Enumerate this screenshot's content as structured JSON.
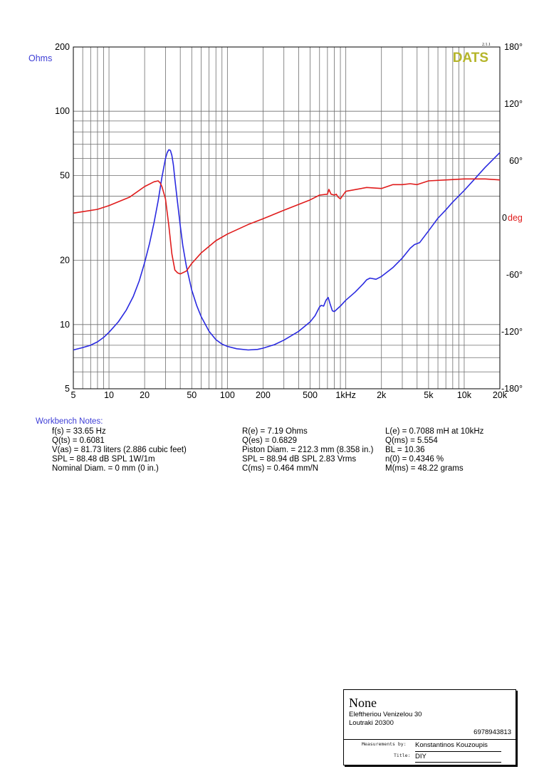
{
  "chart_data": {
    "type": "line",
    "x_axis": {
      "scale": "log",
      "range": [
        5,
        20000
      ],
      "tick_labels": [
        {
          "v": 5,
          "t": "5"
        },
        {
          "v": 10,
          "t": "10"
        },
        {
          "v": 20,
          "t": "20"
        },
        {
          "v": 50,
          "t": "50"
        },
        {
          "v": 100,
          "t": "100"
        },
        {
          "v": 200,
          "t": "200"
        },
        {
          "v": 500,
          "t": "500"
        },
        {
          "v": 1000,
          "t": "1kHz"
        },
        {
          "v": 2000,
          "t": "2k"
        },
        {
          "v": 5000,
          "t": "5k"
        },
        {
          "v": 10000,
          "t": "10k"
        },
        {
          "v": 20000,
          "t": "20k"
        }
      ]
    },
    "y_left": {
      "label": "Ohms",
      "scale": "log",
      "range": [
        5,
        200
      ],
      "tick_labels": [
        {
          "v": 5,
          "t": "5"
        },
        {
          "v": 10,
          "t": "10"
        },
        {
          "v": 20,
          "t": "20"
        },
        {
          "v": 50,
          "t": "50"
        },
        {
          "v": 100,
          "t": "100"
        },
        {
          "v": 200,
          "t": "200"
        }
      ]
    },
    "y_right": {
      "label": "deg",
      "range": [
        -180,
        180
      ],
      "tick_labels": [
        {
          "v": 180,
          "t": "180°"
        },
        {
          "v": 120,
          "t": "120°"
        },
        {
          "v": 60,
          "t": "60°"
        },
        {
          "v": 0,
          "t": "0"
        },
        {
          "v": -60,
          "t": "-60°"
        },
        {
          "v": -120,
          "t": "-120°"
        },
        {
          "v": -180,
          "t": "-180°"
        }
      ]
    },
    "grid": true,
    "series": [
      {
        "axis": "left",
        "color": "#2a2ae0",
        "points": [
          [
            5,
            7.6
          ],
          [
            6,
            7.8
          ],
          [
            7,
            8.0
          ],
          [
            8,
            8.3
          ],
          [
            9,
            8.7
          ],
          [
            10,
            9.2
          ],
          [
            12,
            10.3
          ],
          [
            14,
            11.7
          ],
          [
            16,
            13.5
          ],
          [
            18,
            16
          ],
          [
            20,
            19.5
          ],
          [
            22,
            24
          ],
          [
            24,
            30
          ],
          [
            26,
            38
          ],
          [
            28,
            49
          ],
          [
            30,
            60
          ],
          [
            31,
            64
          ],
          [
            32,
            66
          ],
          [
            33,
            65.5
          ],
          [
            34,
            62
          ],
          [
            35,
            56
          ],
          [
            36,
            48
          ],
          [
            38,
            37
          ],
          [
            40,
            29
          ],
          [
            42,
            23.5
          ],
          [
            45,
            18.8
          ],
          [
            50,
            14.5
          ],
          [
            55,
            12.3
          ],
          [
            60,
            10.9
          ],
          [
            70,
            9.3
          ],
          [
            80,
            8.5
          ],
          [
            90,
            8.1
          ],
          [
            100,
            7.9
          ],
          [
            120,
            7.7
          ],
          [
            150,
            7.6
          ],
          [
            180,
            7.65
          ],
          [
            200,
            7.75
          ],
          [
            250,
            8.05
          ],
          [
            300,
            8.45
          ],
          [
            400,
            9.3
          ],
          [
            500,
            10.3
          ],
          [
            550,
            11.0
          ],
          [
            600,
            12.1
          ],
          [
            620,
            12.3
          ],
          [
            650,
            12.2
          ],
          [
            680,
            13.0
          ],
          [
            710,
            13.4
          ],
          [
            740,
            12.4
          ],
          [
            770,
            11.6
          ],
          [
            800,
            11.5
          ],
          [
            900,
            12.2
          ],
          [
            1000,
            13.0
          ],
          [
            1200,
            14.2
          ],
          [
            1400,
            15.5
          ],
          [
            1500,
            16.2
          ],
          [
            1600,
            16.5
          ],
          [
            1800,
            16.3
          ],
          [
            2000,
            16.8
          ],
          [
            2500,
            18.5
          ],
          [
            3000,
            20.5
          ],
          [
            3500,
            22.8
          ],
          [
            3800,
            23.7
          ],
          [
            4200,
            24.2
          ],
          [
            5000,
            27.5
          ],
          [
            6000,
            31.5
          ],
          [
            7000,
            34.5
          ],
          [
            8000,
            37.5
          ],
          [
            10000,
            42.5
          ],
          [
            12000,
            47.5
          ],
          [
            15000,
            54.5
          ],
          [
            20000,
            64
          ]
        ]
      },
      {
        "axis": "right",
        "color": "#e01c1c",
        "points": [
          [
            5,
            5
          ],
          [
            8,
            9
          ],
          [
            10,
            13
          ],
          [
            15,
            22
          ],
          [
            20,
            33
          ],
          [
            24,
            38
          ],
          [
            26,
            39
          ],
          [
            27,
            37
          ],
          [
            28,
            33
          ],
          [
            30,
            20
          ],
          [
            32,
            -8
          ],
          [
            34,
            -38
          ],
          [
            36,
            -55
          ],
          [
            38,
            -58
          ],
          [
            40,
            -59
          ],
          [
            45,
            -56
          ],
          [
            50,
            -48
          ],
          [
            60,
            -37
          ],
          [
            80,
            -24
          ],
          [
            100,
            -17
          ],
          [
            150,
            -7
          ],
          [
            200,
            -1
          ],
          [
            300,
            8
          ],
          [
            500,
            19
          ],
          [
            600,
            24
          ],
          [
            700,
            25
          ],
          [
            720,
            30
          ],
          [
            750,
            25
          ],
          [
            800,
            24
          ],
          [
            830,
            25
          ],
          [
            860,
            22
          ],
          [
            900,
            20
          ],
          [
            1000,
            28
          ],
          [
            1500,
            32
          ],
          [
            2000,
            31
          ],
          [
            2500,
            35
          ],
          [
            3000,
            35
          ],
          [
            3500,
            36
          ],
          [
            4000,
            35
          ],
          [
            5000,
            39
          ],
          [
            7000,
            40
          ],
          [
            10000,
            41
          ],
          [
            15000,
            41
          ],
          [
            20000,
            40
          ]
        ]
      }
    ],
    "brand": "DATS",
    "version": "2.1.1"
  },
  "notes": {
    "title": "Workbench Notes:",
    "col1": [
      "f(s) = 33.65 Hz",
      "Q(ts) = 0.6081",
      "V(as) = 81.73 liters  (2.886 cubic feet)",
      "SPL = 88.48 dB SPL 1W/1m",
      "Nominal Diam. = 0 mm (0 in.)"
    ],
    "col2": [
      "R(e) = 7.19 Ohms",
      "Q(es) = 0.6829",
      "Piston Diam. = 212.3 mm (8.358 in.)",
      "SPL = 88.94 dB SPL 2.83 Vrms",
      "C(ms) = 0.464 mm/N"
    ],
    "col3": [
      "L(e) = 0.7088 mH at 10kHz",
      "Q(ms) = 5.554",
      "BL = 10.36",
      "n(0) = 0.4346 %",
      "M(ms) = 48.22 grams"
    ]
  },
  "titleblock": {
    "name": "None",
    "address1": "Eleftheriou Venizelou 30",
    "address2": "Loutraki 20300",
    "phone": "6978943813",
    "measurements_by_label": "Measurements by:",
    "measurements_by": "Konstantinos Kouzoupis",
    "title_label": "Title:",
    "title": "DIY"
  }
}
